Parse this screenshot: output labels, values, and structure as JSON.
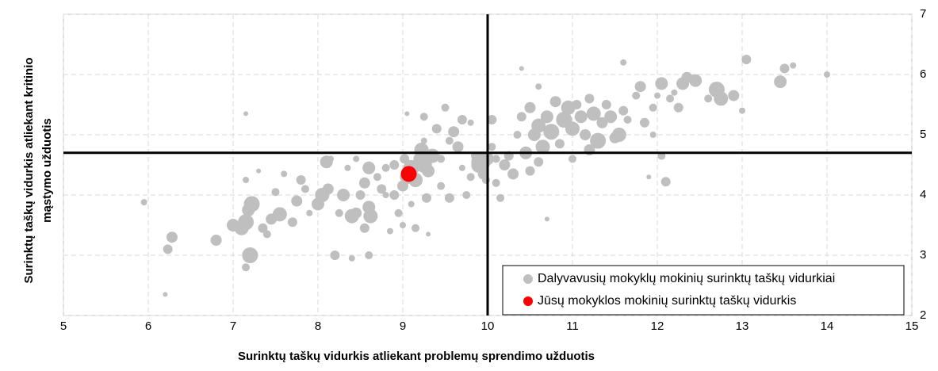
{
  "chart_data": {
    "type": "scatter",
    "x_label": "Surinktų taškų vidurkis atliekant problemų sprendimo užduotis",
    "y_label": [
      "Surinktų taškų vidurkis atliekant  kritinio",
      "mąstymo užduotis"
    ],
    "xlim": [
      5,
      15
    ],
    "xticks": [
      5,
      6,
      7,
      8,
      9,
      10,
      11,
      12,
      13,
      14,
      15
    ],
    "ylim": [
      2,
      7
    ],
    "yticks": [
      2,
      3,
      4,
      5,
      6,
      7
    ],
    "grid": true,
    "vline": 10,
    "hline": 4.7,
    "legend": "lower right",
    "series": [
      {
        "name": "Dalyvavusių mokyklų mokinių surinktų taškų vidurkiai",
        "color": "#bfbfbf",
        "x": [
          5.95,
          6.2,
          6.23,
          6.28,
          6.8,
          7.0,
          7.1,
          7.15,
          7.18,
          7.22,
          7.2,
          7.15,
          7.15,
          7.15,
          7.3,
          7.35,
          7.4,
          7.45,
          7.55,
          7.5,
          7.6,
          7.7,
          7.75,
          7.8,
          7.85,
          7.9,
          8.0,
          8.05,
          8.1,
          8.12,
          8.15,
          8.2,
          8.25,
          8.3,
          8.35,
          8.4,
          8.45,
          8.4,
          8.5,
          8.55,
          8.55,
          8.6,
          8.6,
          8.62,
          8.6,
          8.7,
          8.75,
          8.8,
          8.8,
          8.85,
          8.9,
          8.9,
          8.95,
          9.0,
          9.0,
          9.02,
          9.05,
          9.05,
          9.1,
          9.1,
          9.15,
          9.15,
          9.2,
          9.22,
          9.25,
          9.25,
          9.3,
          9.28,
          9.3,
          9.35,
          9.4,
          9.45,
          9.45,
          9.5,
          9.55,
          9.6,
          9.55,
          9.65,
          9.7,
          9.7,
          9.75,
          9.8,
          9.8,
          9.85,
          9.9,
          9.92,
          9.95,
          9.98,
          10.0,
          10.05,
          10.05,
          10.1,
          10.1,
          10.15,
          10.2,
          10.25,
          10.3,
          10.35,
          10.4,
          10.45,
          10.5,
          10.5,
          10.55,
          10.6,
          10.6,
          10.65,
          10.7,
          10.7,
          10.75,
          10.8,
          10.85,
          10.9,
          10.95,
          11.0,
          11.0,
          11.05,
          11.1,
          11.15,
          11.2,
          11.2,
          11.25,
          11.3,
          11.35,
          11.4,
          11.45,
          11.5,
          11.55,
          11.6,
          11.6,
          11.65,
          11.75,
          11.8,
          11.85,
          11.9,
          11.95,
          12.0,
          12.05,
          12.05,
          12.1,
          12.15,
          12.2,
          12.25,
          12.3,
          12.35,
          12.45,
          12.6,
          12.7,
          12.75,
          12.9,
          13.0,
          13.05,
          13.45,
          13.5,
          13.6,
          14.0,
          9.25,
          8.45,
          10.6,
          10.4,
          11.95
        ],
        "values": [
          3.88,
          2.35,
          3.1,
          3.3,
          3.25,
          3.5,
          3.45,
          3.55,
          3.75,
          3.85,
          3.0,
          2.8,
          4.25,
          5.35,
          4.4,
          3.45,
          3.35,
          3.6,
          3.68,
          4.05,
          4.35,
          3.55,
          3.9,
          4.25,
          4.1,
          3.7,
          3.85,
          4.0,
          4.55,
          4.1,
          4.6,
          3.0,
          3.7,
          4.0,
          4.45,
          3.65,
          3.7,
          2.95,
          4.0,
          4.2,
          3.45,
          3.8,
          4.45,
          3.65,
          3.0,
          4.3,
          4.1,
          4.45,
          4.0,
          3.4,
          4.0,
          4.5,
          3.7,
          4.15,
          3.5,
          4.6,
          5.35,
          4.3,
          3.85,
          4.45,
          4.25,
          3.45,
          4.6,
          4.75,
          4.5,
          5.3,
          4.4,
          3.95,
          3.35,
          4.65,
          5.1,
          4.6,
          4.15,
          5.45,
          3.95,
          5.05,
          4.9,
          4.8,
          5.25,
          4.45,
          4.0,
          4.3,
          5.2,
          4.65,
          4.5,
          4.55,
          4.35,
          4.25,
          4.6,
          4.8,
          5.25,
          4.2,
          4.6,
          3.95,
          4.5,
          4.65,
          4.35,
          5.0,
          5.3,
          4.7,
          5.45,
          4.4,
          5.0,
          5.15,
          4.55,
          4.8,
          5.3,
          3.6,
          5.05,
          5.55,
          4.85,
          5.25,
          5.45,
          5.1,
          4.6,
          5.5,
          5.3,
          5.0,
          5.6,
          4.75,
          5.35,
          4.9,
          5.2,
          5.5,
          5.3,
          4.95,
          5.0,
          6.2,
          5.4,
          5.25,
          5.65,
          5.8,
          5.2,
          4.3,
          5.45,
          5.65,
          5.85,
          4.65,
          4.22,
          5.6,
          5.7,
          5.45,
          5.85,
          5.95,
          5.9,
          5.6,
          5.75,
          5.6,
          5.65,
          5.4,
          6.25,
          5.88,
          6.1,
          6.15,
          6.0,
          4.9,
          4.6,
          5.8,
          6.1,
          5.0
        ],
        "sizes": [
          4,
          3,
          6,
          7,
          7,
          8,
          9,
          10,
          8,
          10,
          10,
          5,
          4,
          3,
          3,
          6,
          5,
          7,
          9,
          5,
          4,
          6,
          7,
          6,
          5,
          4,
          8,
          9,
          8,
          7,
          4,
          6,
          5,
          8,
          4,
          9,
          7,
          4,
          6,
          7,
          6,
          8,
          8,
          9,
          5,
          5,
          6,
          5,
          4,
          4,
          6,
          6,
          5,
          7,
          4,
          6,
          3,
          9,
          4,
          10,
          9,
          5,
          8,
          9,
          10,
          5,
          8,
          6,
          3,
          9,
          6,
          5,
          5,
          5,
          6,
          7,
          5,
          7,
          6,
          4,
          5,
          5,
          4,
          5,
          10,
          12,
          7,
          5,
          8,
          5,
          6,
          5,
          5,
          5,
          7,
          6,
          7,
          5,
          6,
          8,
          7,
          6,
          8,
          9,
          6,
          9,
          8,
          3,
          10,
          7,
          6,
          10,
          9,
          9,
          5,
          6,
          8,
          7,
          6,
          7,
          9,
          10,
          7,
          6,
          8,
          7,
          9,
          4,
          6,
          5,
          5,
          7,
          6,
          3,
          5,
          4,
          8,
          5,
          6,
          5,
          4,
          6,
          8,
          7,
          8,
          5,
          10,
          9,
          7,
          4,
          6,
          8,
          6,
          4,
          4,
          4,
          4,
          4,
          3,
          4
        ]
      },
      {
        "name": "Jūsų mokyklos mokinių surinktų taškų vidurkis",
        "color": "#ff0000",
        "x": [
          9.07
        ],
        "values": [
          4.35
        ],
        "sizes": [
          10
        ]
      }
    ]
  }
}
